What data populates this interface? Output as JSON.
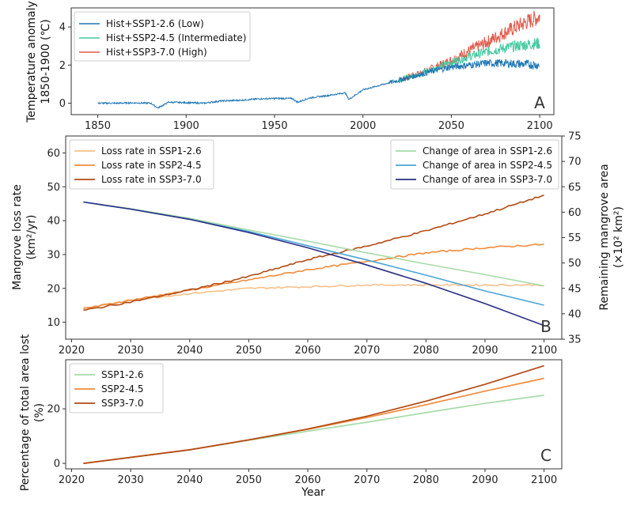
{
  "colors": {
    "hist_low": "#1f77b4",
    "ssp245_temp": "#45c8a0",
    "ssp370_temp": "#e05a4a",
    "loss_126": "#f9c08a",
    "loss_245": "#f08c3c",
    "loss_370": "#b34a12",
    "area_126": "#a6dba8",
    "area_245": "#4aa6d6",
    "area_370": "#2a2e86",
    "right_axis": "#3aa0d0",
    "left_axis_b": "#f08c3c"
  },
  "chart_data": [
    {
      "panel": "A",
      "type": "line",
      "ylabel_line1": "Temperature anomaly",
      "ylabel_line2": "1850-1900 (℃)",
      "xlim": [
        1835,
        2108
      ],
      "ylim": [
        -0.6,
        5.0
      ],
      "xticks": [
        1850,
        1900,
        1950,
        2000,
        2050,
        2100
      ],
      "yticks": [
        0,
        2,
        4
      ],
      "legend": [
        "Hist+SSP1-2.6 (Low)",
        "Hist+SSP2-4.5 (Intermediate)",
        "Hist+SSP3-7.0 (High)"
      ],
      "series": [
        {
          "name": "Hist+SSP1-2.6 (Low)",
          "x": [
            1850,
            1860,
            1870,
            1880,
            1884,
            1890,
            1900,
            1910,
            1920,
            1930,
            1940,
            1950,
            1960,
            1963,
            1970,
            1980,
            1990,
            1992,
            2000,
            2010,
            2020,
            2030,
            2040,
            2050,
            2060,
            2070,
            2080,
            2090,
            2100
          ],
          "y": [
            0.0,
            0.0,
            0.02,
            0.0,
            -0.25,
            0.05,
            0.03,
            0.0,
            0.12,
            0.15,
            0.22,
            0.25,
            0.25,
            0.05,
            0.28,
            0.4,
            0.55,
            0.2,
            0.7,
            0.95,
            1.2,
            1.45,
            1.7,
            1.9,
            2.0,
            2.1,
            2.1,
            2.05,
            2.0
          ]
        },
        {
          "name": "Hist+SSP2-4.5 (Intermediate)",
          "x": [
            2020,
            2030,
            2040,
            2050,
            2060,
            2070,
            2080,
            2090,
            2100
          ],
          "y": [
            1.2,
            1.5,
            1.8,
            2.15,
            2.45,
            2.7,
            2.9,
            3.05,
            3.15
          ]
        },
        {
          "name": "Hist+SSP3-7.0 (High)",
          "x": [
            2020,
            2030,
            2040,
            2050,
            2060,
            2070,
            2080,
            2090,
            2100
          ],
          "y": [
            1.2,
            1.5,
            1.85,
            2.25,
            2.75,
            3.2,
            3.7,
            4.15,
            4.55
          ]
        }
      ]
    },
    {
      "panel": "B",
      "type": "line",
      "ylabel_left_line1": "Mangrove loss rate",
      "ylabel_left_line2": "(km²/yr)",
      "ylabel_right_line1": "Remaining mangrove area",
      "ylabel_right_line2": "(×10² km²)",
      "xlim": [
        2019,
        2103
      ],
      "ylim_left": [
        5,
        65
      ],
      "ylim_right": [
        35,
        75
      ],
      "xticks": [
        2020,
        2030,
        2040,
        2050,
        2060,
        2070,
        2080,
        2090,
        2100
      ],
      "yticks_left": [
        10,
        20,
        30,
        40,
        50,
        60
      ],
      "yticks_right": [
        35,
        40,
        45,
        50,
        55,
        60,
        65,
        70,
        75
      ],
      "legend_left": [
        "Loss rate in SSP1-2.6",
        "Loss rate in SSP2-4.5",
        "Loss rate in SSP3-7.0"
      ],
      "legend_right": [
        "Change of area in SSP1-2.6",
        "Change of area in SSP2-4.5",
        "Change of area in SSP3-7.0"
      ],
      "loss_rate": {
        "x": [
          2022,
          2030,
          2040,
          2050,
          2060,
          2070,
          2080,
          2090,
          2100
        ],
        "ssp126": [
          14.0,
          16.5,
          18.5,
          20.0,
          20.5,
          21.0,
          21.0,
          21.0,
          21.0
        ],
        "ssp245": [
          14.0,
          16.5,
          19.5,
          22.5,
          25.5,
          28.0,
          30.5,
          32.0,
          33.0
        ],
        "ssp370": [
          13.5,
          16.0,
          19.5,
          23.5,
          28.5,
          32.5,
          37.0,
          42.0,
          47.5
        ]
      },
      "remaining_area": {
        "x": [
          2022,
          2030,
          2040,
          2050,
          2060,
          2070,
          2080,
          2090,
          2100
        ],
        "ssp126": [
          62.0,
          60.7,
          58.8,
          56.5,
          54.3,
          52.0,
          49.8,
          47.7,
          45.5
        ],
        "ssp245": [
          62.0,
          60.6,
          58.6,
          56.2,
          53.4,
          50.6,
          47.6,
          44.5,
          41.7
        ],
        "ssp370": [
          62.0,
          60.6,
          58.6,
          56.0,
          53.0,
          49.6,
          46.0,
          42.0,
          37.7
        ]
      }
    },
    {
      "panel": "C",
      "type": "line",
      "ylabel_line1": "Percentage of total area lost",
      "ylabel_line2": "(%)",
      "xlabel": "Year",
      "xlim": [
        2019,
        2103
      ],
      "ylim": [
        -2,
        38
      ],
      "xticks": [
        2020,
        2030,
        2040,
        2050,
        2060,
        2070,
        2080,
        2090,
        2100
      ],
      "yticks": [
        0,
        20
      ],
      "legend": [
        "SSP1-2.6",
        "SSP2-4.5",
        "SSP3-7.0"
      ],
      "x": [
        2022,
        2030,
        2040,
        2050,
        2060,
        2070,
        2080,
        2090,
        2100
      ],
      "series": [
        {
          "name": "SSP1-2.6",
          "values": [
            0.0,
            2.2,
            5.0,
            8.5,
            11.8,
            15.1,
            18.6,
            22.0,
            25.0
          ]
        },
        {
          "name": "SSP2-4.5",
          "values": [
            0.0,
            2.2,
            5.0,
            8.6,
            12.5,
            16.8,
            21.5,
            26.5,
            31.2
          ]
        },
        {
          "name": "SSP3-7.0",
          "values": [
            0.0,
            2.2,
            5.0,
            8.6,
            12.6,
            17.3,
            22.8,
            29.0,
            35.8
          ]
        }
      ]
    }
  ],
  "panel_letters": [
    "A",
    "B",
    "C"
  ]
}
